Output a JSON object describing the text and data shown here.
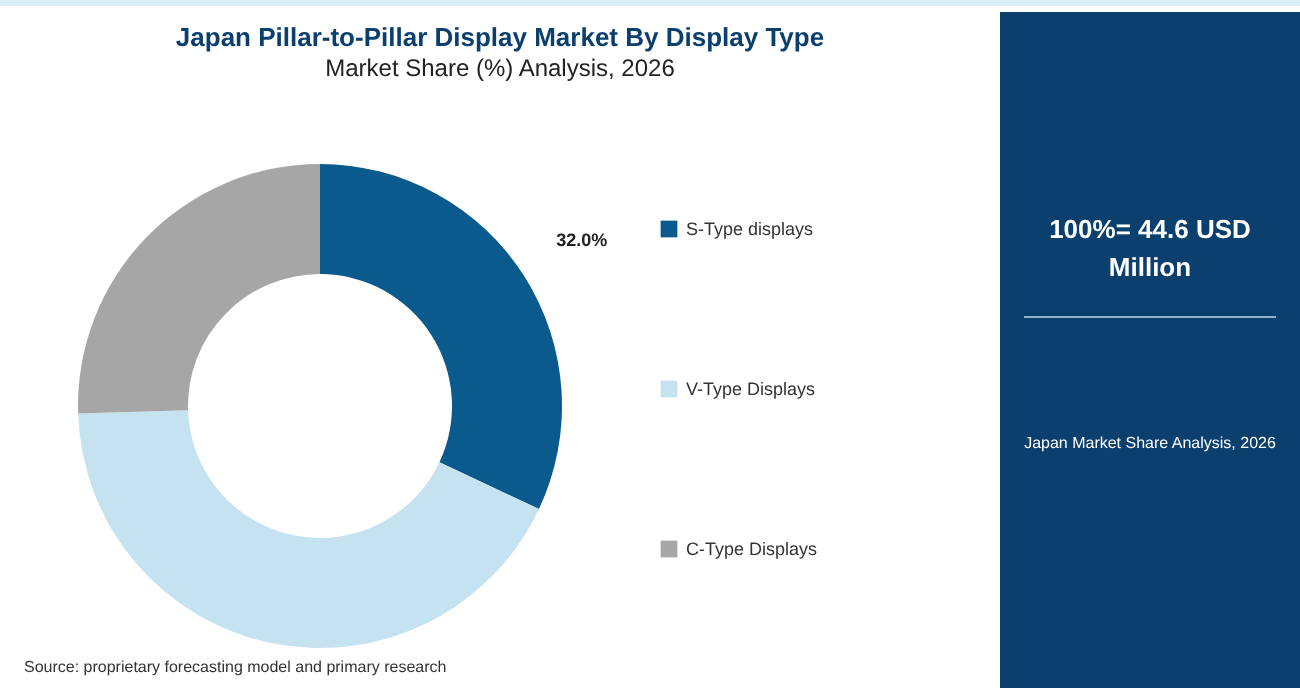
{
  "chart_data": {
    "type": "donut",
    "title": "Japan Pillar-to-Pillar Display Market By Display Type",
    "subtitle": "Market Share (%) Analysis, 2026",
    "categories": [
      "S-Type displays",
      "V-Type Displays",
      "C-Type Displays"
    ],
    "values": [
      32.0,
      42.5,
      25.5
    ],
    "colors": [
      "#0b5a8e",
      "#c5e2f1",
      "#a6a6a6"
    ],
    "value_labels": [
      "32.0%",
      null,
      null
    ],
    "legend": "right",
    "annotations": [
      "100%= 44.6 USD Million",
      "Japan Market Share Analysis, 2026",
      "Source: proprietary forecasting model and primary research"
    ]
  }
}
